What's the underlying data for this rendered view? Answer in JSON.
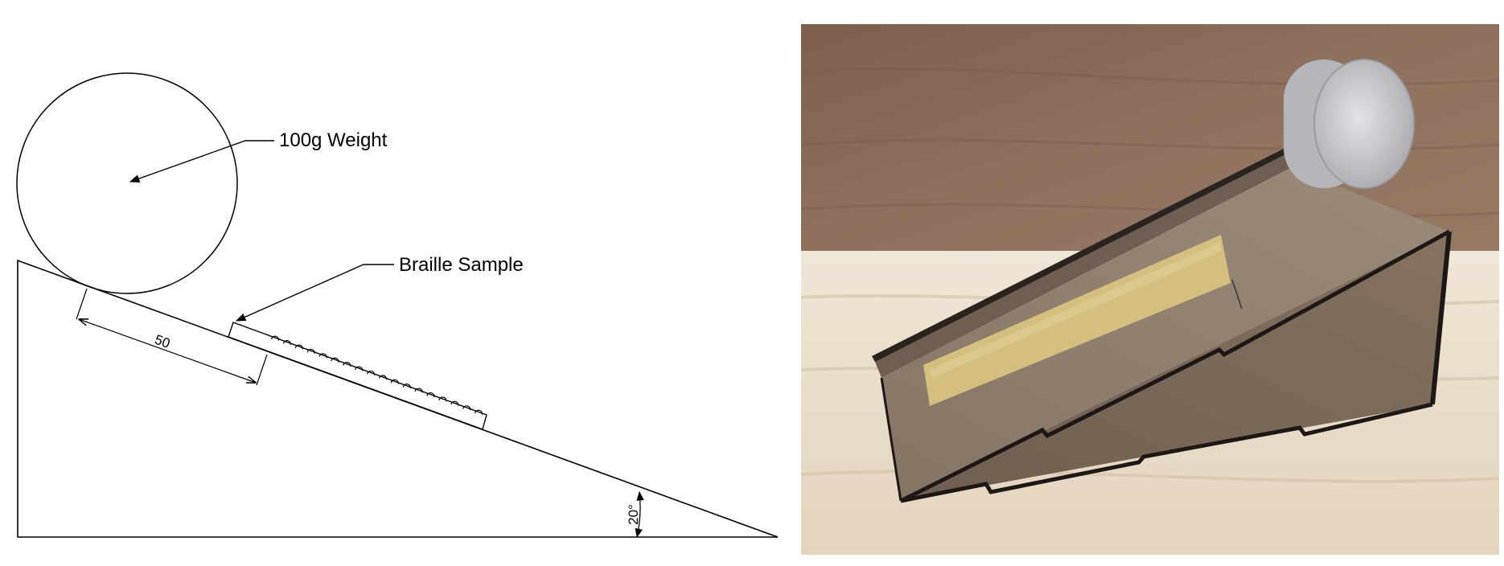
{
  "drawing": {
    "weight_label": "100g Weight",
    "sample_label": "Braille Sample",
    "dimension_value": "50",
    "angle_label": "20°",
    "braille_dot_count": 18
  },
  "photo": {
    "colors": {
      "wall": "#8a6e5a",
      "table": "#e9ddc8",
      "ramp_top": "#8e7f70",
      "ramp_side": "#7a6a5b",
      "tape": "#d4bf7e",
      "weight": "#c8c9cd"
    }
  }
}
